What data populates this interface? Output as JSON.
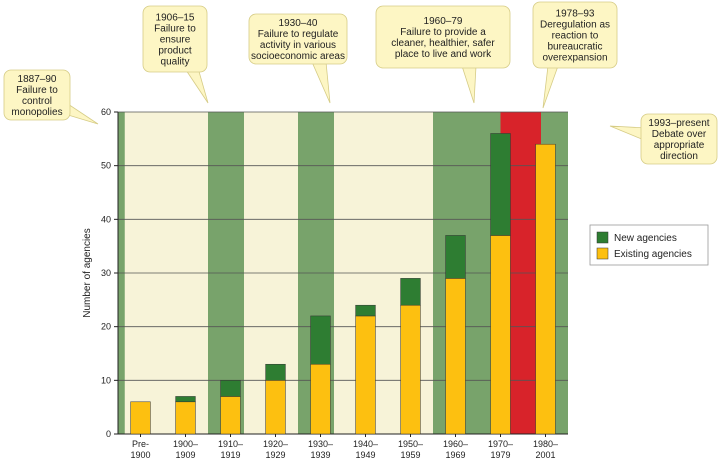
{
  "chart_data": {
    "type": "bar",
    "stacked": true,
    "ylabel": "Number of agencies",
    "ylim": [
      0,
      60
    ],
    "yticks": [
      0,
      10,
      20,
      30,
      40,
      50,
      60
    ],
    "categories": [
      [
        "Pre-",
        "1900"
      ],
      [
        "1900–",
        "1909"
      ],
      [
        "1910–",
        "1919"
      ],
      [
        "1920–",
        "1929"
      ],
      [
        "1930–",
        "1939"
      ],
      [
        "1940–",
        "1949"
      ],
      [
        "1950–",
        "1959"
      ],
      [
        "1960–",
        "1969"
      ],
      [
        "1970–",
        "1979"
      ],
      [
        "1980–",
        "2001"
      ]
    ],
    "series": [
      {
        "name": "Existing agencies",
        "color": "#fdc010",
        "values": [
          6,
          6,
          7,
          10,
          13,
          22,
          24,
          29,
          37,
          54
        ]
      },
      {
        "name": "New agencies",
        "color": "#2e7d32",
        "values": [
          0,
          1,
          3,
          3,
          9,
          2,
          5,
          8,
          19,
          0
        ]
      }
    ],
    "grid": true,
    "legend": "right",
    "colors": {
      "background": "#f7f3d8",
      "period_band": "#78a36b",
      "highlight_band": "#d8232a",
      "bubble": "#fdf6c4",
      "bubble_border": "#d6cc86"
    },
    "bands": [
      {
        "from": 0,
        "to": 0.15,
        "color": "period_band"
      },
      {
        "from": 2,
        "to": 2.8,
        "color": "period_band"
      },
      {
        "from": 4,
        "to": 4.8,
        "color": "period_band"
      },
      {
        "from": 7,
        "to": 8.5,
        "color": "period_band"
      },
      {
        "from": 8.5,
        "to": 9.4,
        "color": "highlight_band"
      },
      {
        "from": 9.4,
        "to": 10,
        "color": "period_band"
      }
    ],
    "annotations": [
      {
        "lines": [
          "1887–90",
          "Failure to",
          "control",
          "monopolies"
        ]
      },
      {
        "lines": [
          "1906–15",
          "Failure to",
          "ensure",
          "product",
          "quality"
        ]
      },
      {
        "lines": [
          "1930–40",
          "Failure to regulate",
          "activity in various",
          "socioeconomic areas"
        ]
      },
      {
        "lines": [
          "1960–79",
          "Failure to provide a",
          "cleaner, healthier, safer",
          "place to live and work"
        ]
      },
      {
        "lines": [
          "1978–93",
          "Deregulation as",
          "reaction to",
          "bureaucratic",
          "overexpansion"
        ]
      },
      {
        "lines": [
          "1993–present",
          "Debate over",
          "appropriate",
          "direction"
        ]
      }
    ]
  }
}
